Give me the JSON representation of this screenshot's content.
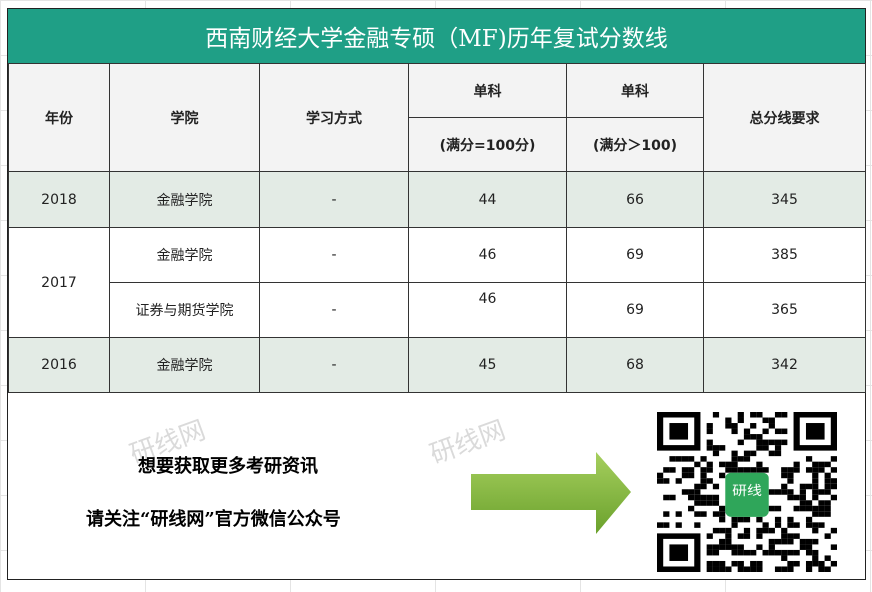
{
  "title": "西南财经大学金融专硕（MF)历年复试分数线",
  "headers": {
    "year": "年份",
    "school": "学院",
    "study_mode": "学习方式",
    "single1": "单科",
    "single1_sub": "(满分=100分)",
    "single2": "单科",
    "single2_sub": "(满分＞100)",
    "total": "总分线要求"
  },
  "rows": [
    {
      "year": "2018",
      "school": "金融学院",
      "mode": "-",
      "s1": "44",
      "s2": "66",
      "total": "345"
    },
    {
      "year": "2017",
      "school": "金融学院",
      "mode": "-",
      "s1": "46",
      "s2": "69",
      "total": "385"
    },
    {
      "year": "",
      "school": "证券与期货学院",
      "mode": "-",
      "s1": "46",
      "s2": "69",
      "total": "365"
    },
    {
      "year": "2016",
      "school": "金融学院",
      "mode": "-",
      "s1": "45",
      "s2": "68",
      "total": "342"
    }
  ],
  "footer": {
    "line1": "想要获取更多考研资讯",
    "line2": "请关注“研线网”官方微信公众号",
    "qr_logo": "研线"
  },
  "watermark": "研线网",
  "colors": {
    "title_bg": "#1f9f86",
    "shaded_row": "#e3ebe5",
    "arrow": "#7fb33a"
  }
}
